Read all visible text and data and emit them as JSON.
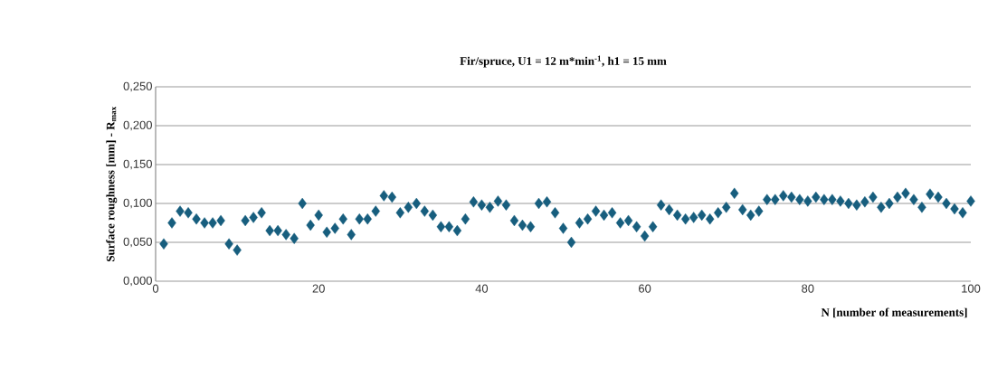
{
  "chart_data": {
    "type": "scatter",
    "title": "Fir/spruce, U1 = 12 m*min$^{-1}$, h1 = 15 mm",
    "xlabel": "N [number of measurements]",
    "ylabel": "Surface roughness [mm] - R$_{max}$",
    "x": [
      1,
      2,
      3,
      4,
      5,
      6,
      7,
      8,
      9,
      10,
      11,
      12,
      13,
      14,
      15,
      16,
      17,
      18,
      19,
      20,
      21,
      22,
      23,
      24,
      25,
      26,
      27,
      28,
      29,
      30,
      31,
      32,
      33,
      34,
      35,
      36,
      37,
      38,
      39,
      40,
      41,
      42,
      43,
      44,
      45,
      46,
      47,
      48,
      49,
      50,
      51,
      52,
      53,
      54,
      55,
      56,
      57,
      58,
      59,
      60,
      61,
      62,
      63,
      64,
      65,
      66,
      67,
      68,
      69,
      70,
      71,
      72,
      73,
      74,
      75,
      76,
      77,
      78,
      79,
      80,
      81,
      82,
      83,
      84,
      85,
      86,
      87,
      88,
      89,
      90,
      91,
      92,
      93,
      94,
      95,
      96,
      97,
      98,
      99,
      100
    ],
    "series": [
      {
        "color": "#175e7e",
        "values": [
          0.048,
          0.075,
          0.09,
          0.088,
          0.08,
          0.075,
          0.075,
          0.078,
          0.048,
          0.04,
          0.078,
          0.082,
          0.088,
          0.065,
          0.065,
          0.06,
          0.055,
          0.1,
          0.072,
          0.085,
          0.063,
          0.068,
          0.08,
          0.06,
          0.08,
          0.08,
          0.09,
          0.11,
          0.108,
          0.088,
          0.095,
          0.1,
          0.09,
          0.085,
          0.07,
          0.07,
          0.065,
          0.08,
          0.102,
          0.098,
          0.095,
          0.103,
          0.098,
          0.078,
          0.072,
          0.07,
          0.1,
          0.102,
          0.088,
          0.068,
          0.05,
          0.075,
          0.08,
          0.09,
          0.085,
          0.088,
          0.075,
          0.078,
          0.07,
          0.058,
          0.07,
          0.098,
          0.092,
          0.085,
          0.08,
          0.082,
          0.085,
          0.08,
          0.088,
          0.095,
          0.113,
          0.092,
          0.085,
          0.09,
          0.105,
          0.105,
          0.11,
          0.108,
          0.105,
          0.103,
          0.108,
          0.105,
          0.105,
          0.103,
          0.1,
          0.098,
          0.102,
          0.108,
          0.095,
          0.1,
          0.108,
          0.113,
          0.105,
          0.095,
          0.112,
          0.108,
          0.1,
          0.093,
          0.088,
          0.103
        ]
      }
    ],
    "xlim": [
      0,
      100
    ],
    "xticks": [
      0,
      20,
      40,
      60,
      80,
      100
    ],
    "ylim": [
      0,
      0.25
    ],
    "yticks": [
      {
        "value": 0,
        "label": "0,000"
      },
      {
        "value": 0.05,
        "label": "0,050"
      },
      {
        "value": 0.1,
        "label": "0,100"
      },
      {
        "value": 0.15,
        "label": "0,150"
      },
      {
        "value": 0.2,
        "label": "0,200"
      },
      {
        "value": 0.25,
        "label": "0,250"
      }
    ],
    "grid": "y",
    "marker": "diamond"
  }
}
